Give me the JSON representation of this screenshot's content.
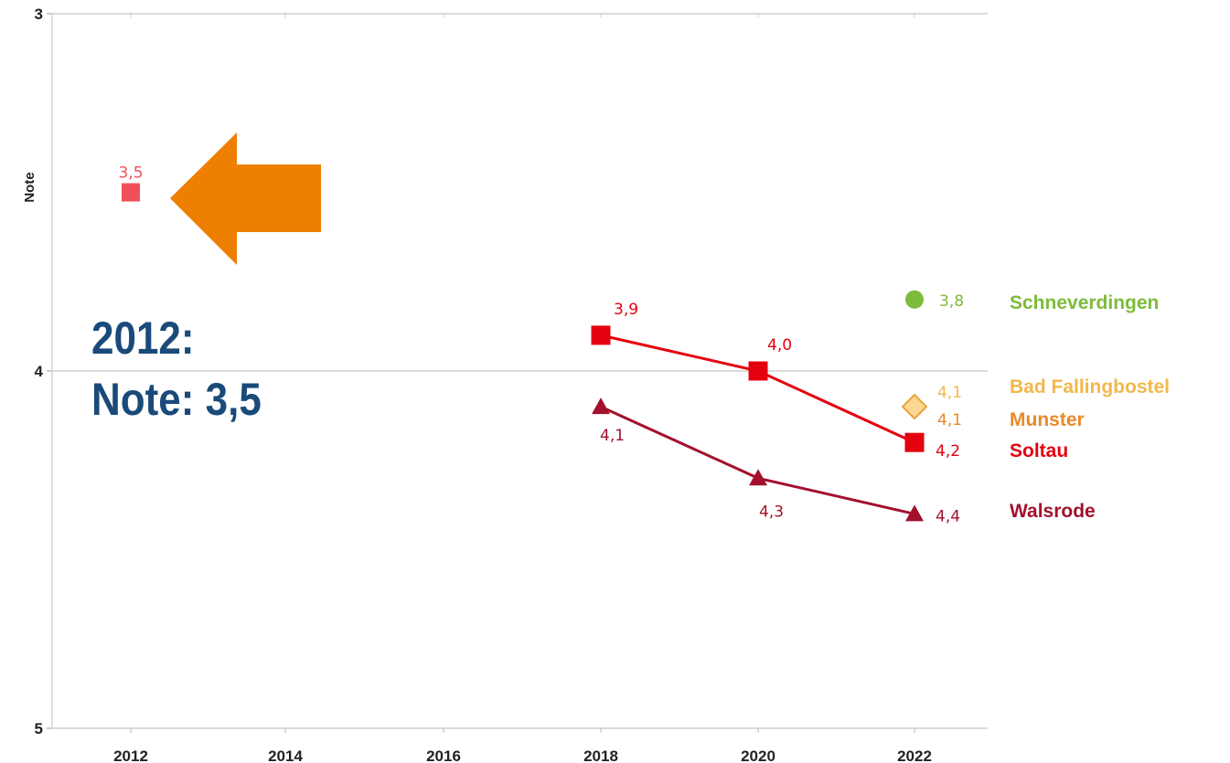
{
  "chart_data": {
    "type": "line",
    "ylabel": "Note",
    "xlabel": "",
    "x": [
      2012,
      2014,
      2016,
      2018,
      2020,
      2022
    ],
    "x_tick_labels": [
      "2012",
      "2014",
      "2016",
      "2018",
      "2020",
      "2022"
    ],
    "ylim": [
      3,
      5
    ],
    "y_inverted": true,
    "y_ticks": [
      3,
      4,
      5
    ],
    "y_tick_labels": [
      "3",
      "4",
      "5"
    ],
    "grid": "horizontal",
    "series": [
      {
        "name": "Schneverdingen",
        "color": "#7dbb3a",
        "marker": "circle",
        "points": [
          {
            "x": 2022,
            "y": 3.8,
            "label": "3,8"
          }
        ]
      },
      {
        "name": "Bad Fallingbostel",
        "color": "#f2b84b",
        "marker": "diamond",
        "points": [
          {
            "x": 2022,
            "y": 4.1,
            "label": "4,1"
          }
        ]
      },
      {
        "name": "Munster",
        "color": "#e8892b",
        "marker": "none",
        "points": [
          {
            "x": 2022,
            "y": 4.1,
            "label": "4,1"
          }
        ]
      },
      {
        "name": "Soltau",
        "color": "#e5000f",
        "marker": "square",
        "points": [
          {
            "x": 2012,
            "y": 3.5,
            "label": "3,5",
            "color": "#f0505a"
          },
          {
            "x": 2018,
            "y": 3.9,
            "label": "3,9"
          },
          {
            "x": 2020,
            "y": 4.0,
            "label": "4,0"
          },
          {
            "x": 2022,
            "y": 4.2,
            "label": "4,2"
          }
        ]
      },
      {
        "name": "Walsrode",
        "color": "#a3102e",
        "marker": "triangle",
        "points": [
          {
            "x": 2018,
            "y": 4.1,
            "label": "4,1"
          },
          {
            "x": 2020,
            "y": 4.3,
            "label": "4,3"
          },
          {
            "x": 2022,
            "y": 4.4,
            "label": "4,4"
          }
        ]
      }
    ],
    "annotation": {
      "arrow_color": "#ee7f00",
      "text_line1": "2012:",
      "text_line2": "Note: 3,5",
      "text_color": "#1a4a7a"
    }
  }
}
